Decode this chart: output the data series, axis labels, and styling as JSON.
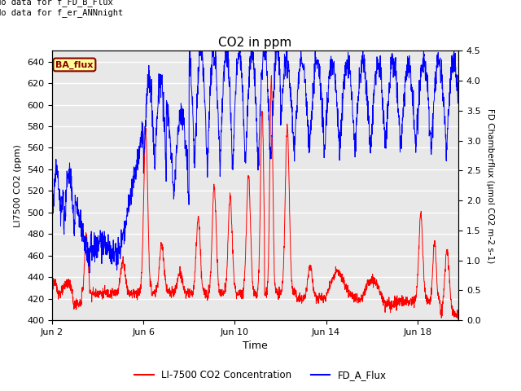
{
  "title": "CO2 in ppm",
  "title_fontsize": 11,
  "xlabel": "Time",
  "ylabel_left": "LI7500 CO2 (ppm)",
  "ylabel_right": "FD Chamberflux (μmol CO2 m-2 s-1)",
  "ylim_left": [
    400,
    650
  ],
  "ylim_right": [
    0.0,
    4.5
  ],
  "yticks_left": [
    400,
    420,
    440,
    460,
    480,
    500,
    520,
    540,
    560,
    580,
    600,
    620,
    640
  ],
  "yticks_right": [
    0.0,
    0.5,
    1.0,
    1.5,
    2.0,
    2.5,
    3.0,
    3.5,
    4.0,
    4.5
  ],
  "xtick_labels": [
    "Jun 2",
    "Jun 6",
    "Jun 10",
    "Jun 14",
    "Jun 18"
  ],
  "xtick_positions": [
    2,
    6,
    10,
    14,
    18
  ],
  "xmin": 2,
  "xmax": 19.8,
  "annotation_text": "No data for f_FD_B_Flux\nNo data for f_er_ANNnight",
  "legend_box_text": "BA_flux",
  "legend_box_color": "#FFFF99",
  "legend_box_edge": "#8B0000",
  "line_red_label": "LI-7500 CO2 Concentration",
  "line_blue_label": "FD_A_Flux",
  "line_red_color": "red",
  "line_blue_color": "blue",
  "bg_color": "#E8E8E8",
  "grid_color": "white",
  "fig_bg": "white"
}
